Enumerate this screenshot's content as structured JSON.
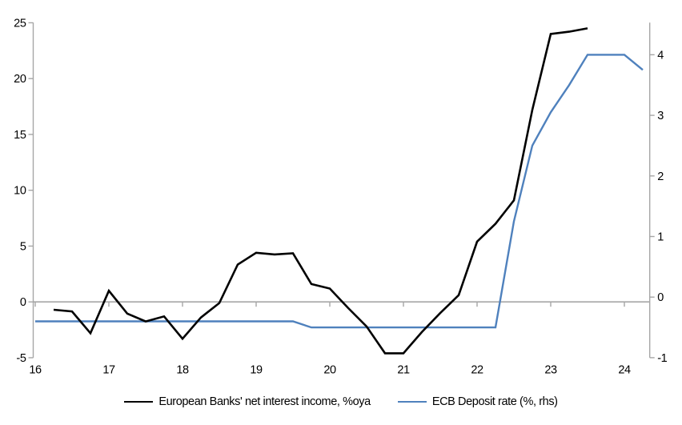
{
  "chart_data": {
    "type": "line",
    "title": "",
    "background": "#ffffff",
    "axis_color": "#a6a6a6",
    "text_color": "#000000",
    "grid": "zero-line-only",
    "legend_position": "bottom-center",
    "x_axis": {
      "tick_values": [
        16,
        17,
        18,
        19,
        20,
        21,
        22,
        23,
        24
      ],
      "tick_labels": [
        "16",
        "17",
        "18",
        "19",
        "20",
        "21",
        "22",
        "23",
        "24"
      ],
      "range": [
        16,
        24.33
      ]
    },
    "left_axis": {
      "tick_values": [
        25,
        20,
        15,
        10,
        5,
        0,
        -5
      ],
      "tick_labels": [
        "25",
        "20",
        "15",
        "10",
        "5",
        "0",
        "-5"
      ],
      "range": [
        -5,
        25
      ]
    },
    "right_axis": {
      "tick_values": [
        4,
        3,
        2,
        1,
        0,
        -1
      ],
      "tick_labels": [
        "4",
        "3",
        "2",
        "1",
        "0",
        "-1"
      ],
      "range": [
        -1,
        4.53
      ]
    },
    "series": [
      {
        "name": "European Banks' net interest income, %oya",
        "axis": "left",
        "color": "#000000",
        "width": 2.6,
        "x": [
          16.25,
          16.5,
          16.75,
          17.0,
          17.25,
          17.5,
          17.75,
          18.0,
          18.25,
          18.5,
          18.75,
          19.0,
          19.25,
          19.5,
          19.75,
          20.0,
          20.25,
          20.5,
          20.75,
          21.0,
          21.25,
          21.5,
          21.75,
          22.0,
          22.25,
          22.5,
          22.75,
          23.0,
          23.25,
          23.5
        ],
        "values": [
          -0.7,
          -0.85,
          -2.8,
          1.0,
          -1.05,
          -1.75,
          -1.3,
          -3.3,
          -1.4,
          -0.1,
          3.35,
          4.4,
          4.25,
          4.35,
          1.6,
          1.2,
          -0.55,
          -2.2,
          -4.6,
          -4.6,
          -2.7,
          -1.0,
          0.6,
          5.4,
          7.0,
          9.1,
          17.2,
          24.0,
          24.2,
          24.5
        ]
      },
      {
        "name": "ECB Deposit rate (%, rhs)",
        "axis": "right",
        "color": "#4f81bd",
        "width": 2.4,
        "x": [
          16.0,
          16.25,
          16.5,
          16.75,
          17.0,
          17.25,
          17.5,
          17.75,
          18.0,
          18.25,
          18.5,
          18.75,
          19.0,
          19.25,
          19.5,
          19.75,
          20.0,
          20.25,
          20.5,
          20.75,
          21.0,
          21.25,
          21.5,
          21.75,
          22.0,
          22.25,
          22.5,
          22.75,
          23.0,
          23.25,
          23.5,
          23.75,
          24.0,
          24.25
        ],
        "values": [
          -0.4,
          -0.4,
          -0.4,
          -0.4,
          -0.4,
          -0.4,
          -0.4,
          -0.4,
          -0.4,
          -0.4,
          -0.4,
          -0.4,
          -0.4,
          -0.4,
          -0.4,
          -0.5,
          -0.5,
          -0.5,
          -0.5,
          -0.5,
          -0.5,
          -0.5,
          -0.5,
          -0.5,
          -0.5,
          -0.5,
          1.25,
          2.5,
          3.05,
          3.5,
          4.0,
          4.0,
          4.0,
          3.75
        ]
      }
    ]
  }
}
